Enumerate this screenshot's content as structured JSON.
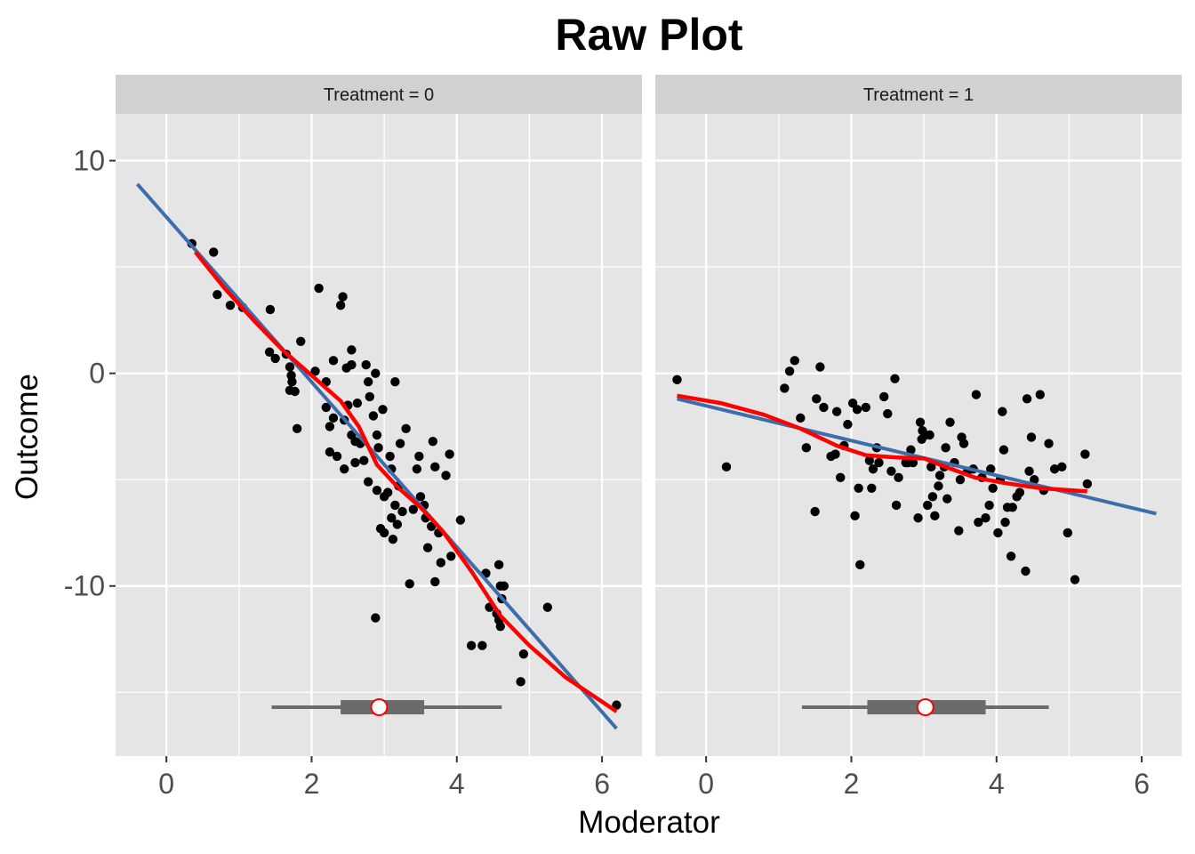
{
  "chart_data": {
    "type": "scatter",
    "title": "Raw Plot",
    "xlabel": "Moderator",
    "ylabel": "Outcome",
    "xlim": [
      -0.7,
      6.55
    ],
    "ylim": [
      -18.0,
      12.2
    ],
    "x_ticks": [
      0,
      2,
      4,
      6
    ],
    "x_tick_labels": [
      "0",
      "2",
      "4",
      "6"
    ],
    "y_ticks": [
      10,
      0,
      -10
    ],
    "y_tick_labels": [
      "10",
      "0",
      "-10"
    ],
    "grid": true,
    "legend": "none",
    "colors": {
      "panel_background": "#E5E5E5",
      "strip_background": "#D1D1D1",
      "grid": "#FFFFFF",
      "points": "#000000",
      "linear_fit": "#3C6EAB",
      "loess_fit": "#FF0000",
      "boxplot": "#6B6B6B",
      "median_marker_fill": "#FFFFFF",
      "median_marker_stroke": "#FF0000"
    },
    "panels": [
      {
        "strip_label": "Treatment = 0",
        "points": [
          [
            0.35,
            6.1
          ],
          [
            0.65,
            5.7
          ],
          [
            0.7,
            3.7
          ],
          [
            0.88,
            3.2
          ],
          [
            1.05,
            3.1
          ],
          [
            1.43,
            3.0
          ],
          [
            1.42,
            1.0
          ],
          [
            1.5,
            0.7
          ],
          [
            1.65,
            0.9
          ],
          [
            1.7,
            0.3
          ],
          [
            1.72,
            -0.1
          ],
          [
            1.73,
            -0.4
          ],
          [
            1.7,
            -0.8
          ],
          [
            1.77,
            -0.85
          ],
          [
            1.8,
            -2.6
          ],
          [
            1.85,
            1.5
          ],
          [
            2.05,
            0.1
          ],
          [
            2.1,
            4.0
          ],
          [
            2.2,
            -0.4
          ],
          [
            2.2,
            -1.6
          ],
          [
            2.25,
            -2.5
          ],
          [
            2.25,
            -3.7
          ],
          [
            2.3,
            0.6
          ],
          [
            2.3,
            -2.1
          ],
          [
            2.35,
            -3.9
          ],
          [
            2.4,
            3.2
          ],
          [
            2.43,
            3.6
          ],
          [
            2.45,
            -2.2
          ],
          [
            2.45,
            -4.5
          ],
          [
            2.48,
            0.25
          ],
          [
            2.5,
            -1.5
          ],
          [
            2.55,
            1.1
          ],
          [
            2.55,
            0.4
          ],
          [
            2.55,
            -2.9
          ],
          [
            2.6,
            -3.2
          ],
          [
            2.6,
            -4.2
          ],
          [
            2.63,
            -1.4
          ],
          [
            2.67,
            -3.3
          ],
          [
            2.72,
            -4.1
          ],
          [
            2.75,
            0.4
          ],
          [
            2.78,
            -0.4
          ],
          [
            2.8,
            -1.1
          ],
          [
            2.78,
            -5.1
          ],
          [
            2.85,
            -2.0
          ],
          [
            2.88,
            0.0
          ],
          [
            2.88,
            -11.5
          ],
          [
            2.9,
            -2.9
          ],
          [
            2.9,
            -5.5
          ],
          [
            2.92,
            -3.5
          ],
          [
            2.95,
            -7.3
          ],
          [
            2.98,
            -1.7
          ],
          [
            3.0,
            -5.8
          ],
          [
            3.0,
            -7.5
          ],
          [
            3.05,
            -5.6
          ],
          [
            3.08,
            -3.9
          ],
          [
            3.1,
            -4.5
          ],
          [
            3.1,
            -6.8
          ],
          [
            3.12,
            -7.8
          ],
          [
            3.15,
            -0.4
          ],
          [
            3.15,
            -6.2
          ],
          [
            3.18,
            -7.1
          ],
          [
            3.2,
            -5.3
          ],
          [
            3.22,
            -3.3
          ],
          [
            3.25,
            -6.5
          ],
          [
            3.3,
            -2.6
          ],
          [
            3.35,
            -9.9
          ],
          [
            3.4,
            -6.4
          ],
          [
            3.45,
            -4.5
          ],
          [
            3.48,
            -3.9
          ],
          [
            3.5,
            -5.8
          ],
          [
            3.55,
            -6.2
          ],
          [
            3.57,
            -6.8
          ],
          [
            3.6,
            -8.2
          ],
          [
            3.65,
            -7.2
          ],
          [
            3.67,
            -3.2
          ],
          [
            3.7,
            -9.8
          ],
          [
            3.7,
            -4.4
          ],
          [
            3.75,
            -7.5
          ],
          [
            3.78,
            -8.9
          ],
          [
            3.85,
            -4.8
          ],
          [
            3.9,
            -3.8
          ],
          [
            3.92,
            -8.6
          ],
          [
            4.05,
            -6.9
          ],
          [
            4.2,
            -12.8
          ],
          [
            4.35,
            -12.8
          ],
          [
            4.4,
            -9.4
          ],
          [
            4.45,
            -11.0
          ],
          [
            4.55,
            -11.3
          ],
          [
            4.58,
            -9.0
          ],
          [
            4.58,
            -11.6
          ],
          [
            4.6,
            -10.0
          ],
          [
            4.6,
            -11.9
          ],
          [
            4.62,
            -10.6
          ],
          [
            4.65,
            -10.0
          ],
          [
            4.88,
            -14.5
          ],
          [
            4.92,
            -13.2
          ],
          [
            5.25,
            -11.0
          ],
          [
            6.2,
            -15.6
          ]
        ],
        "linear_fit": [
          [
            -0.4,
            8.9
          ],
          [
            6.2,
            -16.7
          ]
        ],
        "loess_fit": [
          [
            0.4,
            5.7
          ],
          [
            0.8,
            4.0
          ],
          [
            1.2,
            2.5
          ],
          [
            1.6,
            1.1
          ],
          [
            2.0,
            -0.1
          ],
          [
            2.4,
            -1.3
          ],
          [
            2.65,
            -2.5
          ],
          [
            2.9,
            -4.3
          ],
          [
            3.2,
            -5.4
          ],
          [
            3.5,
            -6.3
          ],
          [
            3.8,
            -7.4
          ],
          [
            4.2,
            -9.3
          ],
          [
            4.6,
            -11.4
          ],
          [
            5.0,
            -12.8
          ],
          [
            5.5,
            -14.3
          ],
          [
            6.2,
            -15.9
          ]
        ],
        "boxplot": {
          "whisker_low": 1.45,
          "q1": 2.4,
          "median": 2.93,
          "q3": 3.55,
          "whisker_high": 4.62,
          "y": -15.7
        }
      },
      {
        "strip_label": "Treatment = 1",
        "points": [
          [
            -0.4,
            -0.3
          ],
          [
            0.28,
            -4.4
          ],
          [
            1.08,
            -0.7
          ],
          [
            1.15,
            0.1
          ],
          [
            1.22,
            0.6
          ],
          [
            1.3,
            -2.1
          ],
          [
            1.38,
            -3.5
          ],
          [
            1.5,
            -6.5
          ],
          [
            1.52,
            -1.2
          ],
          [
            1.57,
            0.3
          ],
          [
            1.62,
            -1.6
          ],
          [
            1.72,
            -3.9
          ],
          [
            1.78,
            -3.8
          ],
          [
            1.8,
            -1.8
          ],
          [
            1.85,
            -4.9
          ],
          [
            1.9,
            -3.4
          ],
          [
            1.95,
            -2.4
          ],
          [
            2.02,
            -1.4
          ],
          [
            2.05,
            -6.7
          ],
          [
            2.08,
            -1.7
          ],
          [
            2.1,
            -5.4
          ],
          [
            2.12,
            -9.0
          ],
          [
            2.2,
            -1.6
          ],
          [
            2.25,
            -4.1
          ],
          [
            2.28,
            -5.4
          ],
          [
            2.3,
            -4.5
          ],
          [
            2.35,
            -3.5
          ],
          [
            2.38,
            -4.2
          ],
          [
            2.45,
            -1.1
          ],
          [
            2.5,
            -1.9
          ],
          [
            2.55,
            -4.6
          ],
          [
            2.6,
            -0.25
          ],
          [
            2.62,
            -6.2
          ],
          [
            2.65,
            -4.9
          ],
          [
            2.75,
            -4.2
          ],
          [
            2.78,
            -4.2
          ],
          [
            2.82,
            -3.6
          ],
          [
            2.85,
            -4.2
          ],
          [
            2.92,
            -6.8
          ],
          [
            2.95,
            -2.3
          ],
          [
            2.97,
            -3.1
          ],
          [
            2.98,
            -2.7
          ],
          [
            3.02,
            -2.9
          ],
          [
            3.05,
            -6.2
          ],
          [
            3.08,
            -2.9
          ],
          [
            3.1,
            -4.4
          ],
          [
            3.12,
            -5.8
          ],
          [
            3.15,
            -6.7
          ],
          [
            3.2,
            -5.3
          ],
          [
            3.22,
            -4.8
          ],
          [
            3.28,
            -4.4
          ],
          [
            3.3,
            -3.5
          ],
          [
            3.32,
            -5.9
          ],
          [
            3.36,
            -2.3
          ],
          [
            3.42,
            -4.2
          ],
          [
            3.48,
            -7.4
          ],
          [
            3.5,
            -5.0
          ],
          [
            3.52,
            -3.0
          ],
          [
            3.55,
            -3.3
          ],
          [
            3.6,
            -4.6
          ],
          [
            3.68,
            -4.5
          ],
          [
            3.72,
            -1.0
          ],
          [
            3.75,
            -7.0
          ],
          [
            3.8,
            -4.9
          ],
          [
            3.85,
            -6.8
          ],
          [
            3.9,
            -6.2
          ],
          [
            3.92,
            -4.5
          ],
          [
            3.95,
            -5.4
          ],
          [
            4.02,
            -7.5
          ],
          [
            4.05,
            -5.0
          ],
          [
            4.08,
            -1.8
          ],
          [
            4.1,
            -3.6
          ],
          [
            4.12,
            -7.0
          ],
          [
            4.15,
            -6.3
          ],
          [
            4.2,
            -8.6
          ],
          [
            4.22,
            -6.3
          ],
          [
            4.28,
            -5.8
          ],
          [
            4.32,
            -5.6
          ],
          [
            4.4,
            -9.3
          ],
          [
            4.42,
            -1.2
          ],
          [
            4.45,
            -4.6
          ],
          [
            4.48,
            -3.0
          ],
          [
            4.52,
            -5.0
          ],
          [
            4.6,
            -1.0
          ],
          [
            4.65,
            -5.5
          ],
          [
            4.72,
            -3.3
          ],
          [
            4.8,
            -4.5
          ],
          [
            4.9,
            -4.4
          ],
          [
            4.98,
            -7.5
          ],
          [
            5.08,
            -9.7
          ],
          [
            5.22,
            -3.8
          ],
          [
            5.25,
            -5.2
          ]
        ],
        "linear_fit": [
          [
            -0.4,
            -1.2
          ],
          [
            6.2,
            -6.6
          ]
        ],
        "loess_fit": [
          [
            -0.4,
            -1.05
          ],
          [
            0.2,
            -1.4
          ],
          [
            0.8,
            -1.95
          ],
          [
            1.3,
            -2.6
          ],
          [
            1.8,
            -3.4
          ],
          [
            2.2,
            -3.85
          ],
          [
            2.6,
            -3.95
          ],
          [
            3.0,
            -4.0
          ],
          [
            3.3,
            -4.4
          ],
          [
            3.7,
            -4.9
          ],
          [
            4.1,
            -5.15
          ],
          [
            4.6,
            -5.4
          ],
          [
            5.25,
            -5.55
          ]
        ],
        "boxplot": {
          "whisker_low": 1.32,
          "q1": 2.22,
          "median": 3.02,
          "q3": 3.85,
          "whisker_high": 4.72,
          "y": -15.7
        }
      }
    ]
  }
}
